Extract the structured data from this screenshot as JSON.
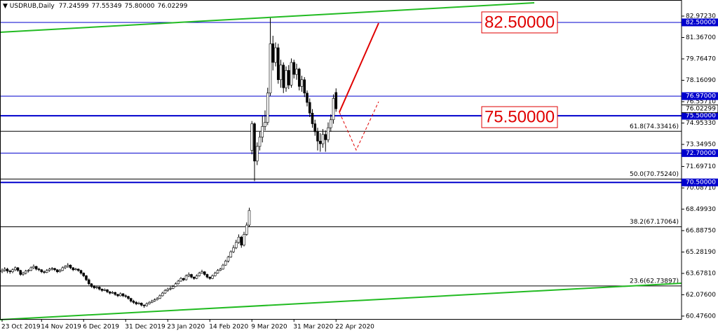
{
  "header": {
    "symbol": "USDRUB,Daily",
    "ohlc": [
      "77.24599",
      "77.55349",
      "75.80000",
      "76.02299"
    ]
  },
  "chart_data": {
    "type": "candlestick",
    "categories": [
      "23 Oct 2019",
      null,
      null,
      null,
      null,
      null,
      null,
      null,
      null,
      null,
      null,
      null,
      null,
      null,
      null,
      "14 Nov 2019",
      null,
      null,
      null,
      null,
      null,
      null,
      null,
      null,
      null,
      null,
      null,
      null,
      null,
      null,
      null,
      "6 Dec 2019",
      null,
      null,
      null,
      null,
      null,
      null,
      null,
      null,
      null,
      null,
      null,
      null,
      null,
      null,
      null,
      "31 Dec 2019",
      null,
      null,
      null,
      null,
      null,
      null,
      null,
      null,
      null,
      null,
      null,
      null,
      null,
      null,
      null,
      "23 Jan 2020",
      null,
      null,
      null,
      null,
      null,
      null,
      null,
      null,
      null,
      null,
      null,
      null,
      null,
      null,
      null,
      "14 Feb 2020",
      null,
      null,
      null,
      null,
      null,
      null,
      null,
      null,
      null,
      null,
      null,
      null,
      null,
      null,
      null,
      "9 Mar 2020",
      null,
      null,
      null,
      null,
      null,
      null,
      null,
      null,
      null,
      null,
      null,
      null,
      null,
      null,
      null,
      "31 Mar 2020",
      null,
      null,
      null,
      null,
      null,
      null,
      null,
      null,
      null,
      null,
      null,
      null,
      null,
      null,
      null,
      "22 Apr 2020"
    ],
    "candles": [
      [
        63.8,
        64.05,
        63.7,
        63.9
      ],
      [
        63.9,
        64.15,
        63.8,
        64.0
      ],
      [
        64.0,
        64.1,
        63.7,
        63.85
      ],
      [
        63.85,
        63.95,
        63.65,
        63.8
      ],
      [
        63.8,
        64.05,
        63.7,
        63.95
      ],
      [
        63.95,
        64.2,
        63.85,
        64.1
      ],
      [
        64.1,
        64.15,
        63.8,
        63.9
      ],
      [
        63.9,
        63.95,
        63.5,
        63.6
      ],
      [
        63.6,
        63.8,
        63.5,
        63.7
      ],
      [
        63.7,
        63.95,
        63.6,
        63.85
      ],
      [
        63.85,
        64.0,
        63.75,
        63.9
      ],
      [
        63.9,
        64.2,
        63.85,
        64.1
      ],
      [
        64.1,
        64.35,
        64.0,
        64.2
      ],
      [
        64.2,
        64.25,
        63.9,
        64.0
      ],
      [
        64.0,
        64.1,
        63.85,
        63.95
      ],
      [
        63.95,
        64.0,
        63.7,
        63.8
      ],
      [
        63.8,
        63.9,
        63.65,
        63.75
      ],
      [
        63.75,
        64.0,
        63.7,
        63.9
      ],
      [
        63.9,
        64.1,
        63.8,
        64.0
      ],
      [
        64.0,
        64.15,
        63.9,
        64.05
      ],
      [
        64.05,
        64.1,
        63.85,
        63.95
      ],
      [
        63.95,
        64.0,
        63.7,
        63.8
      ],
      [
        63.8,
        64.0,
        63.75,
        63.9
      ],
      [
        63.9,
        64.2,
        63.85,
        64.1
      ],
      [
        64.1,
        64.3,
        64.0,
        64.2
      ],
      [
        64.2,
        64.45,
        64.1,
        64.3
      ],
      [
        64.3,
        64.35,
        64.0,
        64.1
      ],
      [
        64.1,
        64.15,
        63.85,
        63.95
      ],
      [
        63.95,
        64.1,
        63.9,
        64.0
      ],
      [
        64.0,
        64.05,
        63.8,
        63.9
      ],
      [
        63.9,
        63.95,
        63.6,
        63.7
      ],
      [
        63.7,
        63.75,
        63.4,
        63.5
      ],
      [
        63.5,
        63.55,
        63.1,
        63.2
      ],
      [
        63.2,
        63.3,
        62.8,
        62.9
      ],
      [
        62.9,
        62.95,
        62.6,
        62.7
      ],
      [
        62.7,
        62.8,
        62.5,
        62.6
      ],
      [
        62.6,
        62.75,
        62.5,
        62.65
      ],
      [
        62.65,
        62.7,
        62.4,
        62.5
      ],
      [
        62.5,
        62.55,
        62.3,
        62.4
      ],
      [
        62.4,
        62.55,
        62.35,
        62.45
      ],
      [
        62.45,
        62.5,
        62.2,
        62.3
      ],
      [
        62.3,
        62.35,
        62.1,
        62.2
      ],
      [
        62.2,
        62.35,
        62.15,
        62.25
      ],
      [
        62.25,
        62.3,
        62.0,
        62.1
      ],
      [
        62.1,
        62.15,
        61.9,
        62.0
      ],
      [
        62.0,
        62.25,
        61.95,
        62.15
      ],
      [
        62.15,
        62.2,
        61.9,
        62.0
      ],
      [
        62.0,
        62.1,
        61.85,
        61.95
      ],
      [
        61.95,
        62.0,
        61.7,
        61.8
      ],
      [
        61.8,
        61.85,
        61.5,
        61.6
      ],
      [
        61.6,
        61.7,
        61.4,
        61.5
      ],
      [
        61.5,
        61.6,
        61.3,
        61.4
      ],
      [
        61.4,
        61.55,
        61.35,
        61.45
      ],
      [
        61.45,
        61.5,
        61.2,
        61.3
      ],
      [
        61.3,
        61.35,
        61.1,
        61.25
      ],
      [
        61.25,
        61.5,
        61.2,
        61.4
      ],
      [
        61.4,
        61.6,
        61.35,
        61.5
      ],
      [
        61.5,
        61.7,
        61.45,
        61.6
      ],
      [
        61.6,
        61.8,
        61.55,
        61.7
      ],
      [
        61.7,
        61.9,
        61.65,
        61.8
      ],
      [
        61.8,
        62.1,
        61.75,
        62.0
      ],
      [
        62.0,
        62.3,
        61.95,
        62.2
      ],
      [
        62.2,
        62.5,
        62.15,
        62.4
      ],
      [
        62.4,
        62.6,
        62.3,
        62.5
      ],
      [
        62.5,
        62.7,
        62.4,
        62.55
      ],
      [
        62.55,
        62.8,
        62.5,
        62.7
      ],
      [
        62.7,
        63.0,
        62.65,
        62.9
      ],
      [
        62.9,
        63.2,
        62.85,
        63.1
      ],
      [
        63.1,
        63.4,
        63.05,
        63.3
      ],
      [
        63.3,
        63.35,
        63.1,
        63.2
      ],
      [
        63.2,
        63.6,
        63.15,
        63.5
      ],
      [
        63.5,
        63.75,
        63.4,
        63.6
      ],
      [
        63.6,
        63.65,
        63.3,
        63.4
      ],
      [
        63.4,
        63.45,
        63.2,
        63.3
      ],
      [
        63.3,
        63.6,
        63.25,
        63.5
      ],
      [
        63.5,
        63.8,
        63.45,
        63.7
      ],
      [
        63.7,
        63.95,
        63.65,
        63.8
      ],
      [
        63.8,
        63.85,
        63.5,
        63.6
      ],
      [
        63.6,
        63.65,
        63.3,
        63.4
      ],
      [
        63.4,
        63.45,
        63.2,
        63.3
      ],
      [
        63.3,
        63.6,
        63.25,
        63.5
      ],
      [
        63.5,
        63.8,
        63.45,
        63.7
      ],
      [
        63.7,
        64.0,
        63.65,
        63.9
      ],
      [
        63.9,
        64.1,
        63.85,
        64.0
      ],
      [
        64.0,
        64.4,
        63.95,
        64.3
      ],
      [
        64.3,
        64.7,
        64.25,
        64.6
      ],
      [
        64.6,
        65.0,
        64.5,
        64.9
      ],
      [
        64.9,
        65.4,
        64.85,
        65.3
      ],
      [
        65.3,
        65.8,
        65.2,
        65.6
      ],
      [
        65.6,
        66.2,
        65.5,
        66.0
      ],
      [
        66.0,
        66.6,
        65.9,
        66.4
      ],
      [
        66.4,
        66.5,
        65.6,
        65.8
      ],
      [
        65.8,
        66.8,
        65.7,
        66.6
      ],
      [
        66.6,
        67.5,
        66.5,
        67.3
      ],
      [
        67.3,
        68.6,
        67.2,
        68.4
      ],
      [
        72.9,
        75.1,
        72.6,
        74.9
      ],
      [
        74.9,
        75.0,
        70.6,
        72.1
      ],
      [
        72.1,
        73.5,
        71.8,
        73.2
      ],
      [
        73.2,
        74.3,
        72.9,
        73.9
      ],
      [
        73.9,
        75.5,
        73.5,
        74.7
      ],
      [
        74.7,
        75.9,
        74.4,
        75.0
      ],
      [
        75.0,
        77.6,
        74.8,
        77.2
      ],
      [
        77.2,
        82.9,
        77.0,
        80.9
      ],
      [
        80.9,
        81.5,
        78.9,
        79.5
      ],
      [
        79.5,
        81.0,
        79.2,
        80.6
      ],
      [
        80.6,
        80.9,
        77.9,
        78.2
      ],
      [
        78.2,
        79.7,
        77.6,
        79.3
      ],
      [
        79.3,
        79.5,
        77.2,
        77.6
      ],
      [
        77.6,
        79.2,
        77.3,
        78.9
      ],
      [
        78.9,
        79.3,
        77.5,
        77.8
      ],
      [
        77.8,
        79.8,
        77.6,
        79.5
      ],
      [
        79.5,
        79.7,
        78.3,
        78.6
      ],
      [
        78.6,
        79.4,
        78.2,
        79.0
      ],
      [
        79.0,
        79.1,
        77.4,
        77.7
      ],
      [
        77.7,
        78.5,
        77.3,
        78.2
      ],
      [
        78.2,
        78.4,
        76.9,
        77.2
      ],
      [
        77.2,
        77.4,
        76.2,
        76.5
      ],
      [
        76.5,
        76.8,
        75.4,
        75.7
      ],
      [
        75.7,
        76.0,
        74.6,
        74.9
      ],
      [
        74.9,
        75.2,
        74.0,
        74.3
      ],
      [
        74.3,
        74.6,
        72.9,
        73.6
      ],
      [
        73.6,
        74.2,
        72.8,
        73.4
      ],
      [
        73.4,
        74.5,
        73.1,
        74.1
      ],
      [
        74.1,
        74.4,
        72.8,
        73.7
      ],
      [
        73.7,
        75.0,
        73.5,
        74.6
      ],
      [
        74.6,
        75.6,
        74.3,
        75.2
      ],
      [
        75.2,
        77.1,
        74.9,
        76.8
      ],
      [
        77.24599,
        77.55349,
        75.8,
        76.02299
      ]
    ],
    "bull_color": "#ffffff",
    "bear_color": "#000000",
    "ylim": [
      60.26,
      84.18
    ],
    "yticks": [
      {
        "value": 82.9723,
        "label": "82.97230"
      },
      {
        "value": 81.367,
        "label": "81.36700"
      },
      {
        "value": 79.7647,
        "label": "79.76470"
      },
      {
        "value": 78.1609,
        "label": "78.16090"
      },
      {
        "value": 76.5571,
        "label": "76.55710"
      },
      {
        "value": 74.9533,
        "label": "74.95330"
      },
      {
        "value": 73.3495,
        "label": "73.34950"
      },
      {
        "value": 71.6971,
        "label": "71.69710"
      },
      {
        "value": 70.0871,
        "label": "70.08710"
      },
      {
        "value": 68.4993,
        "label": "68.49930"
      },
      {
        "value": 66.8875,
        "label": "66.88750"
      },
      {
        "value": 65.2819,
        "label": "65.28190"
      },
      {
        "value": 63.6781,
        "label": "63.67810"
      },
      {
        "value": 62.076,
        "label": "62.07600"
      },
      {
        "value": 60.476,
        "label": "60.47600"
      }
    ],
    "levels": [
      {
        "value": 82.5,
        "label": "82.50000",
        "color": "#0000cd",
        "width": 1
      },
      {
        "value": 76.97,
        "label": "76.97000",
        "color": "#0000cd",
        "width": 1
      },
      {
        "value": 75.5,
        "label": "75.50000",
        "color": "#0000cd",
        "width": 2
      },
      {
        "value": 72.7,
        "label": "72.70000",
        "color": "#0000cd",
        "width": 1
      },
      {
        "value": 70.5,
        "label": "70.50000",
        "color": "#0000cd",
        "width": 2
      }
    ],
    "fib_levels": [
      {
        "value": 74.33416,
        "label": "61.8(74.33416)"
      },
      {
        "value": 70.7524,
        "label": "50.0(70.75240)"
      },
      {
        "value": 67.17064,
        "label": "38.2(67.17064)"
      },
      {
        "value": 62.73897,
        "label": "23.6(62.73897)"
      }
    ],
    "callouts": [
      {
        "value": 82.5,
        "label": "82.50000"
      },
      {
        "value": 75.5,
        "label": "75.50000"
      }
    ]
  }
}
